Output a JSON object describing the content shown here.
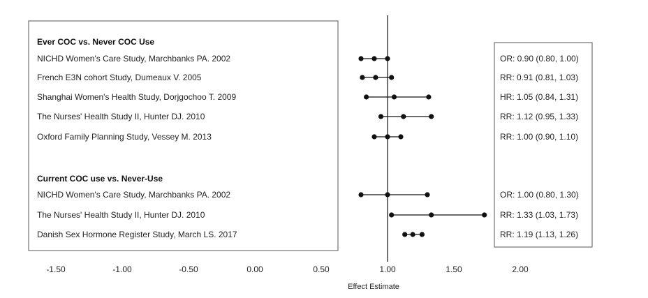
{
  "chart_data": {
    "type": "forest",
    "xlabel": "Effect Estimate",
    "xlim": [
      -1.5,
      2.0
    ],
    "xticks": [
      -1.5,
      -1.0,
      -0.5,
      0.0,
      0.5,
      1.0,
      1.5,
      2.0
    ],
    "xtick_labels": [
      "-1.50",
      "-1.00",
      "-0.50",
      "0.00",
      "0.50",
      "1.00",
      "1.50",
      "2.00"
    ],
    "reference_line": 1.0,
    "groups": [
      {
        "label": "Ever COC vs. Never COC Use",
        "studies": [
          {
            "label": "NICHD Women's  Care  Study, Marchbanks PA. 2002",
            "estimate": 0.9,
            "lower": 0.8,
            "upper": 1.0,
            "estimate_text": "OR: 0.90 (0.80, 1.00)"
          },
          {
            "label": "French E3N cohort Study, Dumeaux V. 2005",
            "estimate": 0.91,
            "lower": 0.81,
            "upper": 1.03,
            "estimate_text": "RR: 0.91 (0.81, 1.03)"
          },
          {
            "label": "Shanghai Women's Health Study, Dorjgochoo T. 2009",
            "estimate": 1.05,
            "lower": 0.84,
            "upper": 1.31,
            "estimate_text": "HR: 1.05 (0.84, 1.31)"
          },
          {
            "label": "The Nurses' Health Study II, Hunter DJ. 2010",
            "estimate": 1.12,
            "lower": 0.95,
            "upper": 1.33,
            "estimate_text": "RR: 1.12 (0.95, 1.33)"
          },
          {
            "label": "Oxford Family Planning Study, Vessey M. 2013",
            "estimate": 1.0,
            "lower": 0.9,
            "upper": 1.1,
            "estimate_text": "RR: 1.00 (0.90, 1.10)"
          }
        ]
      },
      {
        "label": "Current COC use vs. Never-Use",
        "studies": [
          {
            "label": "NICHD Women's Care Study, Marchbanks PA. 2002",
            "estimate": 1.0,
            "lower": 0.8,
            "upper": 1.3,
            "estimate_text": "OR: 1.00 (0.80, 1.30)"
          },
          {
            "label": "The Nurses' Health Study II, Hunter DJ. 2010",
            "estimate": 1.33,
            "lower": 1.03,
            "upper": 1.73,
            "estimate_text": "RR: 1.33 (1.03, 1.73)"
          },
          {
            "label": "Danish Sex Hormone Register Study, March LS. 2017",
            "estimate": 1.19,
            "lower": 1.13,
            "upper": 1.26,
            "estimate_text": "RR: 1.19 (1.13, 1.26)"
          }
        ]
      }
    ],
    "colors": {
      "marker": "#111111",
      "line": "#111111",
      "box": "#555555"
    }
  }
}
